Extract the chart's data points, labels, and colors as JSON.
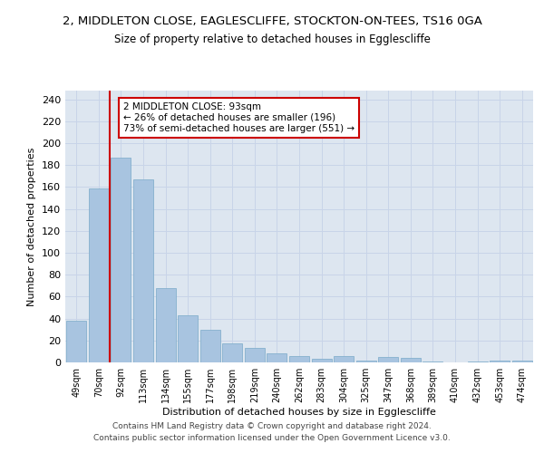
{
  "title": "2, MIDDLETON CLOSE, EAGLESCLIFFE, STOCKTON-ON-TEES, TS16 0GA",
  "subtitle": "Size of property relative to detached houses in Egglescliffe",
  "xlabel": "Distribution of detached houses by size in Egglescliffe",
  "ylabel": "Number of detached properties",
  "categories": [
    "49sqm",
    "70sqm",
    "92sqm",
    "113sqm",
    "134sqm",
    "155sqm",
    "177sqm",
    "198sqm",
    "219sqm",
    "240sqm",
    "262sqm",
    "283sqm",
    "304sqm",
    "325sqm",
    "347sqm",
    "368sqm",
    "389sqm",
    "410sqm",
    "432sqm",
    "453sqm",
    "474sqm"
  ],
  "values": [
    38,
    159,
    187,
    167,
    68,
    43,
    30,
    17,
    13,
    8,
    6,
    3,
    6,
    2,
    5,
    4,
    1,
    0,
    1,
    2,
    2
  ],
  "bar_color": "#a8c4e0",
  "bar_edge_color": "#7aaac8",
  "vline_color": "#cc0000",
  "annotation_text": "2 MIDDLETON CLOSE: 93sqm\n← 26% of detached houses are smaller (196)\n73% of semi-detached houses are larger (551) →",
  "annotation_box_color": "#ffffff",
  "annotation_box_edge_color": "#cc0000",
  "ylim": [
    0,
    248
  ],
  "yticks": [
    0,
    20,
    40,
    60,
    80,
    100,
    120,
    140,
    160,
    180,
    200,
    220,
    240
  ],
  "grid_color": "#c8d4e8",
  "background_color": "#dde6f0",
  "footer": "Contains HM Land Registry data © Crown copyright and database right 2024.\nContains public sector information licensed under the Open Government Licence v3.0."
}
